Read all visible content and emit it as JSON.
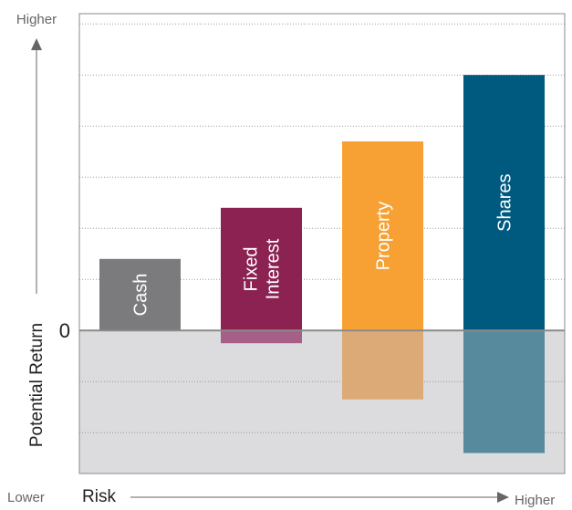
{
  "chart_data": {
    "type": "bar",
    "categories": [
      "Cash",
      "Fixed Interest",
      "Property",
      "Shares"
    ],
    "category_lines": [
      [
        "Cash"
      ],
      [
        "Fixed",
        "Interest"
      ],
      [
        "Property"
      ],
      [
        "Shares"
      ]
    ],
    "series": [
      {
        "values_upper": [
          1.4,
          2.4,
          3.7,
          5.0
        ],
        "values_lower": [
          0,
          -0.25,
          -1.35,
          -2.4
        ]
      }
    ],
    "colors": [
      "#7b7b7d",
      "#8b2252",
      "#f7a135",
      "#005a80"
    ],
    "negative_colors": [
      "#7b7b7d",
      "#a65f86",
      "#dcaa77",
      "#588a9e"
    ],
    "ylim": [
      -2.8,
      6.2
    ],
    "zero_label": "0",
    "y_axis": {
      "label": "Potential Return",
      "top_label": "Higher"
    },
    "x_axis": {
      "label": "Risk",
      "left_label": "Lower",
      "right_label": "Higher"
    },
    "negative_region_color": "#dcdcde",
    "grid": true
  }
}
